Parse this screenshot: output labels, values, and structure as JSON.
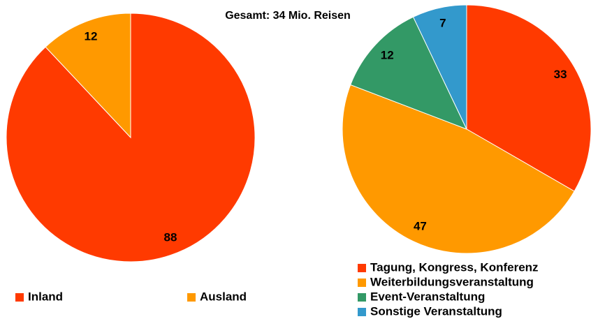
{
  "title": "Gesamt: 34 Mio. Reisen",
  "chart_data": [
    {
      "type": "pie",
      "categories": [
        "Inland",
        "Ausland"
      ],
      "values": [
        88,
        12
      ],
      "colors": [
        "#ff3a00",
        "#ff9900"
      ]
    },
    {
      "type": "pie",
      "categories": [
        "Tagung, Kongress, Konferenz",
        "Weiterbildungsveranstaltung",
        "Event-Veranstaltung",
        "Sonstige Veranstaltung"
      ],
      "values": [
        33,
        47,
        12,
        7
      ],
      "colors": [
        "#ff3a00",
        "#ff9900",
        "#339966",
        "#3399cc"
      ]
    }
  ]
}
